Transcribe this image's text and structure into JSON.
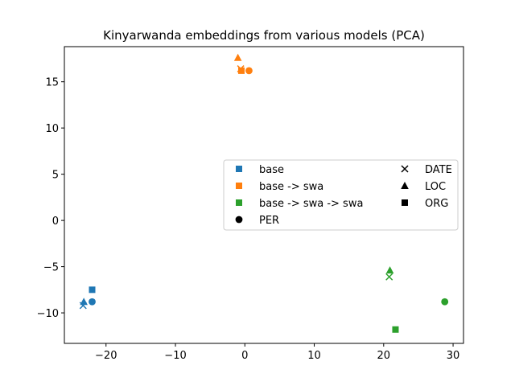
{
  "chart_data": {
    "type": "scatter",
    "title": "Kinyarwanda embeddings from various models (PCA)",
    "xlim": [
      -26,
      31.5
    ],
    "ylim": [
      -13.3,
      18.8
    ],
    "xticks": [
      -20,
      -10,
      0,
      10,
      20,
      30
    ],
    "yticks": [
      -10,
      -5,
      0,
      5,
      10,
      15
    ],
    "xtick_labels": [
      "−20",
      "−10",
      "0",
      "10",
      "20",
      "30"
    ],
    "ytick_labels": [
      "−10",
      "−5",
      "0",
      "5",
      "10",
      "15"
    ],
    "grid": false,
    "legend_position": "center-right",
    "model_colors": {
      "base": "#1f77b4",
      "base -> swa": "#ff7f0e",
      "base -> swa -> swa": "#2ca02c"
    },
    "series": [
      {
        "name": "base",
        "color": "#1f77b4",
        "points": [
          {
            "label": "DATE",
            "x": -23.3,
            "y": -9.2
          },
          {
            "label": "LOC",
            "x": -23.2,
            "y": -8.8
          },
          {
            "label": "ORG",
            "x": -22.0,
            "y": -7.5
          },
          {
            "label": "PER",
            "x": -22.0,
            "y": -8.8
          }
        ]
      },
      {
        "name": "base -> swa",
        "color": "#ff7f0e",
        "points": [
          {
            "label": "DATE",
            "x": -0.6,
            "y": 16.4
          },
          {
            "label": "LOC",
            "x": -1.0,
            "y": 17.6
          },
          {
            "label": "ORG",
            "x": -0.5,
            "y": 16.2
          },
          {
            "label": "PER",
            "x": 0.6,
            "y": 16.2
          }
        ]
      },
      {
        "name": "base -> swa -> swa",
        "color": "#2ca02c",
        "points": [
          {
            "label": "DATE",
            "x": 20.8,
            "y": -6.1
          },
          {
            "label": "LOC",
            "x": 20.9,
            "y": -5.4
          },
          {
            "label": "ORG",
            "x": 21.7,
            "y": -11.8
          },
          {
            "label": "PER",
            "x": 28.8,
            "y": -8.8
          }
        ]
      }
    ],
    "legend": {
      "col1": [
        {
          "text": "base",
          "marker": "square",
          "color": "#1f77b4"
        },
        {
          "text": "base -> swa",
          "marker": "square",
          "color": "#ff7f0e"
        },
        {
          "text": "base -> swa -> swa",
          "marker": "square",
          "color": "#2ca02c"
        },
        {
          "text": "PER",
          "marker": "circle",
          "color": "#000000"
        }
      ],
      "col2": [
        {
          "text": "DATE",
          "marker": "x",
          "color": "#000000"
        },
        {
          "text": "LOC",
          "marker": "triangle",
          "color": "#000000"
        },
        {
          "text": "ORG",
          "marker": "square",
          "color": "#000000"
        }
      ]
    }
  }
}
